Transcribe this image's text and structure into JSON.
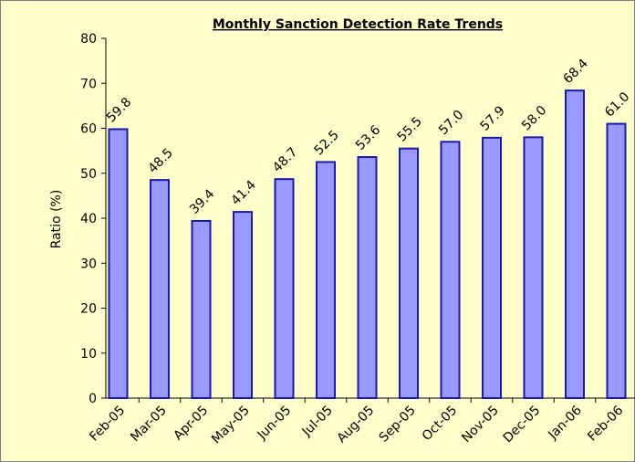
{
  "chart_data": {
    "type": "bar",
    "title": "Monthly Sanction Detection Rate Trends",
    "y_label": "Ratio (%)",
    "categories": [
      "Feb-05",
      "Mar-05",
      "Apr-05",
      "May-05",
      "Jun-05",
      "Jul-05",
      "Aug-05",
      "Sep-05",
      "Oct-05",
      "Nov-05",
      "Dec-05",
      "Jan-06",
      "Feb-06"
    ],
    "values": [
      59.8,
      48.5,
      39.4,
      41.4,
      48.7,
      52.5,
      53.6,
      55.5,
      57.0,
      57.9,
      58.0,
      68.4,
      61.0
    ],
    "value_labels": [
      "59.8",
      "48.5",
      "39.4",
      "41.4",
      "48.7",
      "52.5",
      "53.6",
      "55.5",
      "57.0",
      "57.9",
      "58.0",
      "68.4",
      "61.0"
    ],
    "color": "#9999ff",
    "edge_color": "#1a1aa8",
    "ylim": [
      0,
      80
    ],
    "yticks": [
      0,
      10,
      20,
      30,
      40,
      50,
      60,
      70,
      80
    ],
    "grid": false
  }
}
